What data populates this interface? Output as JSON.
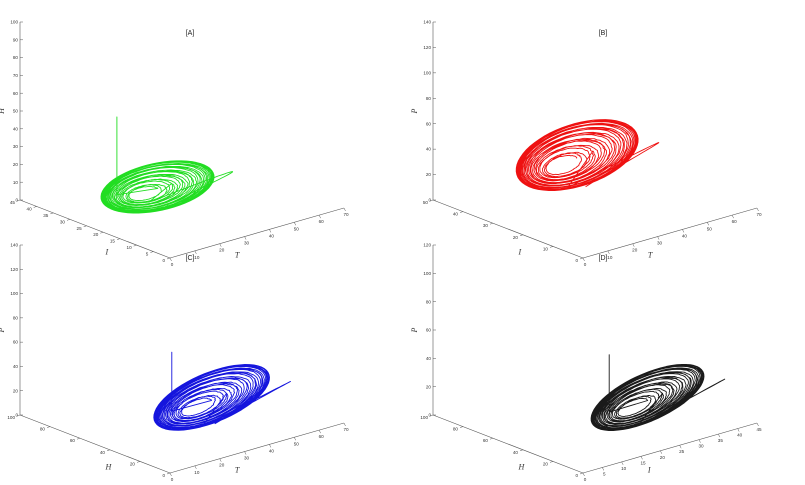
{
  "chart_data": [
    {
      "panel": "[A]",
      "type": "line",
      "projection": "3d",
      "color": "#22dd22",
      "axes": {
        "x": {
          "label": "T",
          "ticks": [
            "0",
            "10",
            "20",
            "30",
            "40",
            "50",
            "60",
            "70"
          ],
          "range": [
            0,
            70
          ]
        },
        "y": {
          "label": "I",
          "ticks": [
            "0",
            "5",
            "10",
            "15",
            "20",
            "25",
            "30",
            "35",
            "40",
            "45"
          ],
          "range": [
            0,
            45
          ]
        },
        "z": {
          "label": "H",
          "ticks": [
            "0",
            "10",
            "20",
            "30",
            "40",
            "50",
            "60",
            "70",
            "80",
            "90",
            "100"
          ],
          "range": [
            0,
            100
          ]
        }
      },
      "attractor": {
        "center": [
          25,
          25,
          8
        ],
        "radius": [
          20,
          9,
          8
        ],
        "loops": 30,
        "transient_peak": 62
      }
    },
    {
      "panel": "[B]",
      "type": "line",
      "projection": "3d",
      "color": "#ee1111",
      "axes": {
        "x": {
          "label": "T",
          "ticks": [
            "0",
            "10",
            "20",
            "30",
            "40",
            "50",
            "60",
            "70"
          ],
          "range": [
            0,
            70
          ]
        },
        "y": {
          "label": "I",
          "ticks": [
            "0",
            "10",
            "20",
            "30",
            "40",
            "50"
          ],
          "range": [
            0,
            50
          ]
        },
        "z": {
          "label": "P",
          "ticks": [
            "0",
            "20",
            "40",
            "60",
            "80",
            "100",
            "120",
            "140"
          ],
          "range": [
            0,
            140
          ]
        }
      },
      "attractor": {
        "center": [
          30,
          30,
          28
        ],
        "radius": [
          22,
          10,
          22
        ],
        "loops": 30
      }
    },
    {
      "panel": "[C]",
      "type": "line",
      "projection": "3d",
      "color": "#1515dd",
      "axes": {
        "x": {
          "label": "T",
          "ticks": [
            "0",
            "10",
            "20",
            "30",
            "40",
            "50",
            "60",
            "70"
          ],
          "range": [
            0,
            70
          ]
        },
        "y": {
          "label": "H",
          "ticks": [
            "0",
            "20",
            "40",
            "60",
            "80",
            "100"
          ],
          "range": [
            0,
            100
          ]
        },
        "z": {
          "label": "P",
          "ticks": [
            "0",
            "20",
            "40",
            "60",
            "80",
            "100",
            "120",
            "140"
          ],
          "range": [
            0,
            140
          ]
        }
      },
      "attractor": {
        "center": [
          28,
          25,
          25
        ],
        "radius": [
          22,
          14,
          22
        ],
        "loops": 30,
        "transient_peak": 85
      }
    },
    {
      "panel": "[D]",
      "type": "line",
      "projection": "3d",
      "color": "#1a1a1a",
      "axes": {
        "x": {
          "label": "I",
          "ticks": [
            "0",
            "5",
            "10",
            "15",
            "20",
            "25",
            "30",
            "35",
            "40",
            "45"
          ],
          "range": [
            0,
            45
          ]
        },
        "y": {
          "label": "H",
          "ticks": [
            "0",
            "20",
            "40",
            "60",
            "80",
            "100"
          ],
          "range": [
            0,
            100
          ]
        },
        "z": {
          "label": "P",
          "ticks": [
            "0",
            "20",
            "40",
            "60",
            "80",
            "100",
            "120"
          ],
          "range": [
            0,
            120
          ]
        }
      },
      "attractor": {
        "center": [
          22,
          20,
          20
        ],
        "radius": [
          14,
          12,
          20
        ],
        "loops": 30,
        "transient_peak": 70
      }
    }
  ]
}
